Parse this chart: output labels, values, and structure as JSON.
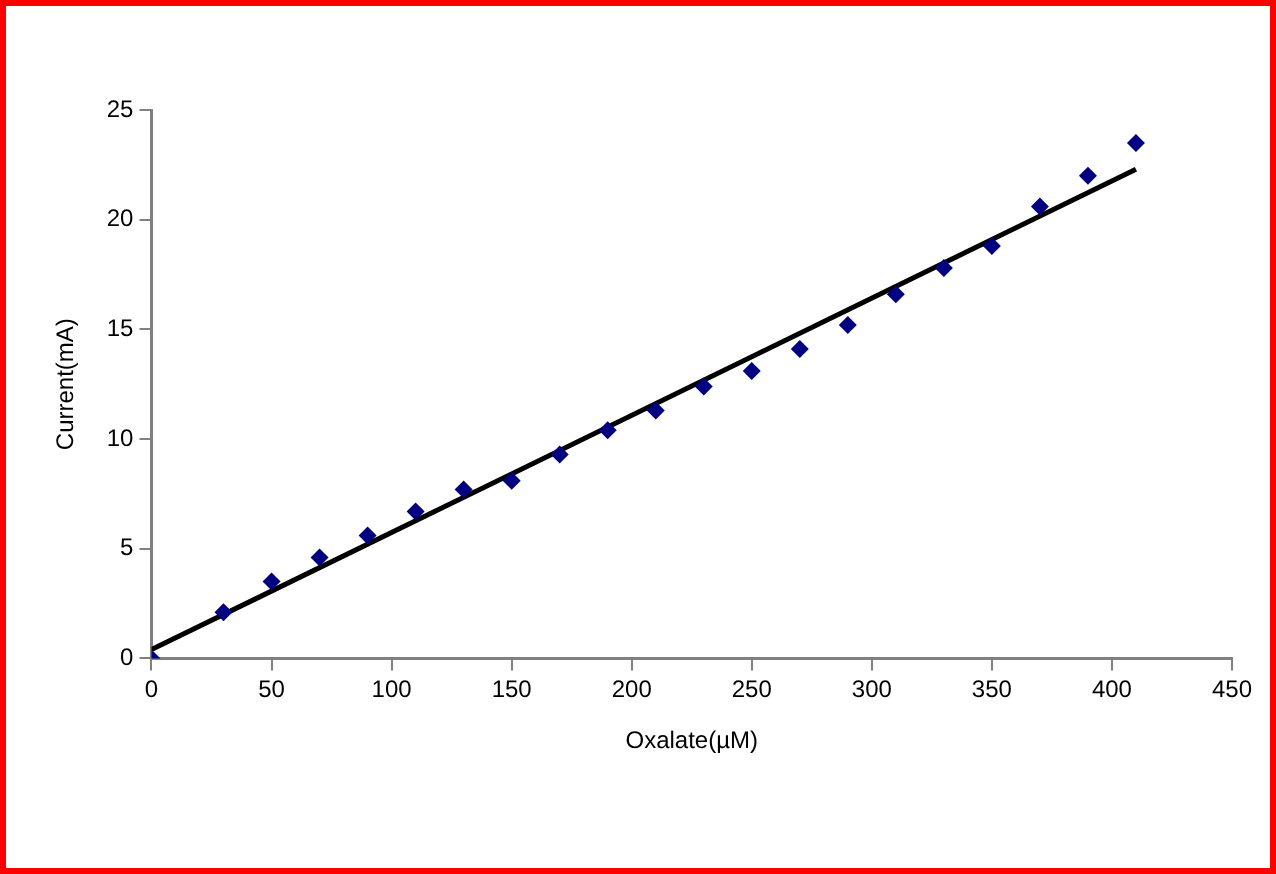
{
  "chart_data": {
    "type": "scatter",
    "xlabel": "Oxalate(µM)",
    "ylabel": "Current(mA)",
    "x": [
      0,
      30,
      50,
      70,
      90,
      110,
      130,
      150,
      170,
      190,
      210,
      230,
      250,
      270,
      290,
      310,
      330,
      350,
      370,
      390,
      410
    ],
    "series": [
      {
        "color": "#000080",
        "marker": "diamond",
        "values": [
          0,
          2.1,
          3.5,
          4.6,
          5.6,
          6.7,
          7.7,
          8.1,
          9.3,
          10.4,
          11.3,
          12.4,
          13.1,
          14.1,
          15.2,
          16.6,
          17.8,
          18.8,
          20.6,
          22.0,
          23.5
        ]
      },
      {
        "type": "line",
        "color": "#000000",
        "x": [
          0,
          410
        ],
        "values": [
          0.4,
          22.3
        ]
      }
    ],
    "xlim": [
      0,
      450
    ],
    "xticks": [
      0,
      50,
      100,
      150,
      200,
      250,
      300,
      350,
      400,
      450
    ],
    "ylim": [
      0,
      25
    ],
    "yticks": [
      0,
      5,
      10,
      15,
      20,
      25
    ],
    "grid": false,
    "legend": false
  }
}
